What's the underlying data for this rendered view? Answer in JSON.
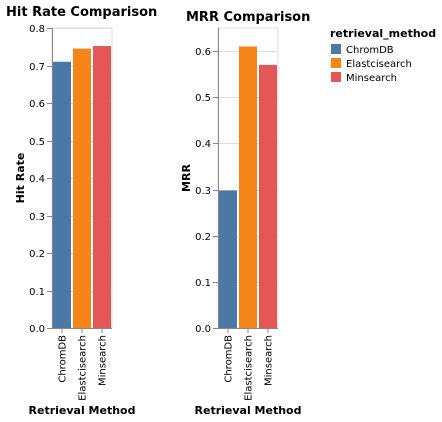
{
  "chart_data": [
    {
      "type": "bar",
      "title": "Hit Rate Comparison",
      "xlabel": "Retrieval Method",
      "ylabel": "Hit Rate",
      "categories": [
        "ChromDB",
        "Elastcisearch",
        "Minsearch"
      ],
      "values": [
        0.71,
        0.745,
        0.752
      ],
      "ylim": [
        0,
        0.8
      ],
      "yticks": [
        "0.0",
        "0.1",
        "0.2",
        "0.3",
        "0.4",
        "0.5",
        "0.6",
        "0.7",
        "0.8"
      ],
      "grid": true
    },
    {
      "type": "bar",
      "title": "MRR Comparison",
      "xlabel": "Retrieval Method",
      "ylabel": "MRR",
      "categories": [
        "ChromDB",
        "Elastcisearch",
        "Minsearch"
      ],
      "values": [
        0.298,
        0.61,
        0.57
      ],
      "ylim": [
        0,
        0.65
      ],
      "yticks": [
        "0.0",
        "0.1",
        "0.2",
        "0.3",
        "0.4",
        "0.5",
        "0.6"
      ],
      "grid": true
    }
  ],
  "legend": {
    "title": "retrieval_method",
    "placement": "top-right",
    "items": [
      {
        "label": "ChromDB",
        "color": "#4c78a8"
      },
      {
        "label": "Elastcisearch",
        "color": "#f58518"
      },
      {
        "label": "Minsearch",
        "color": "#e45756"
      }
    ]
  }
}
